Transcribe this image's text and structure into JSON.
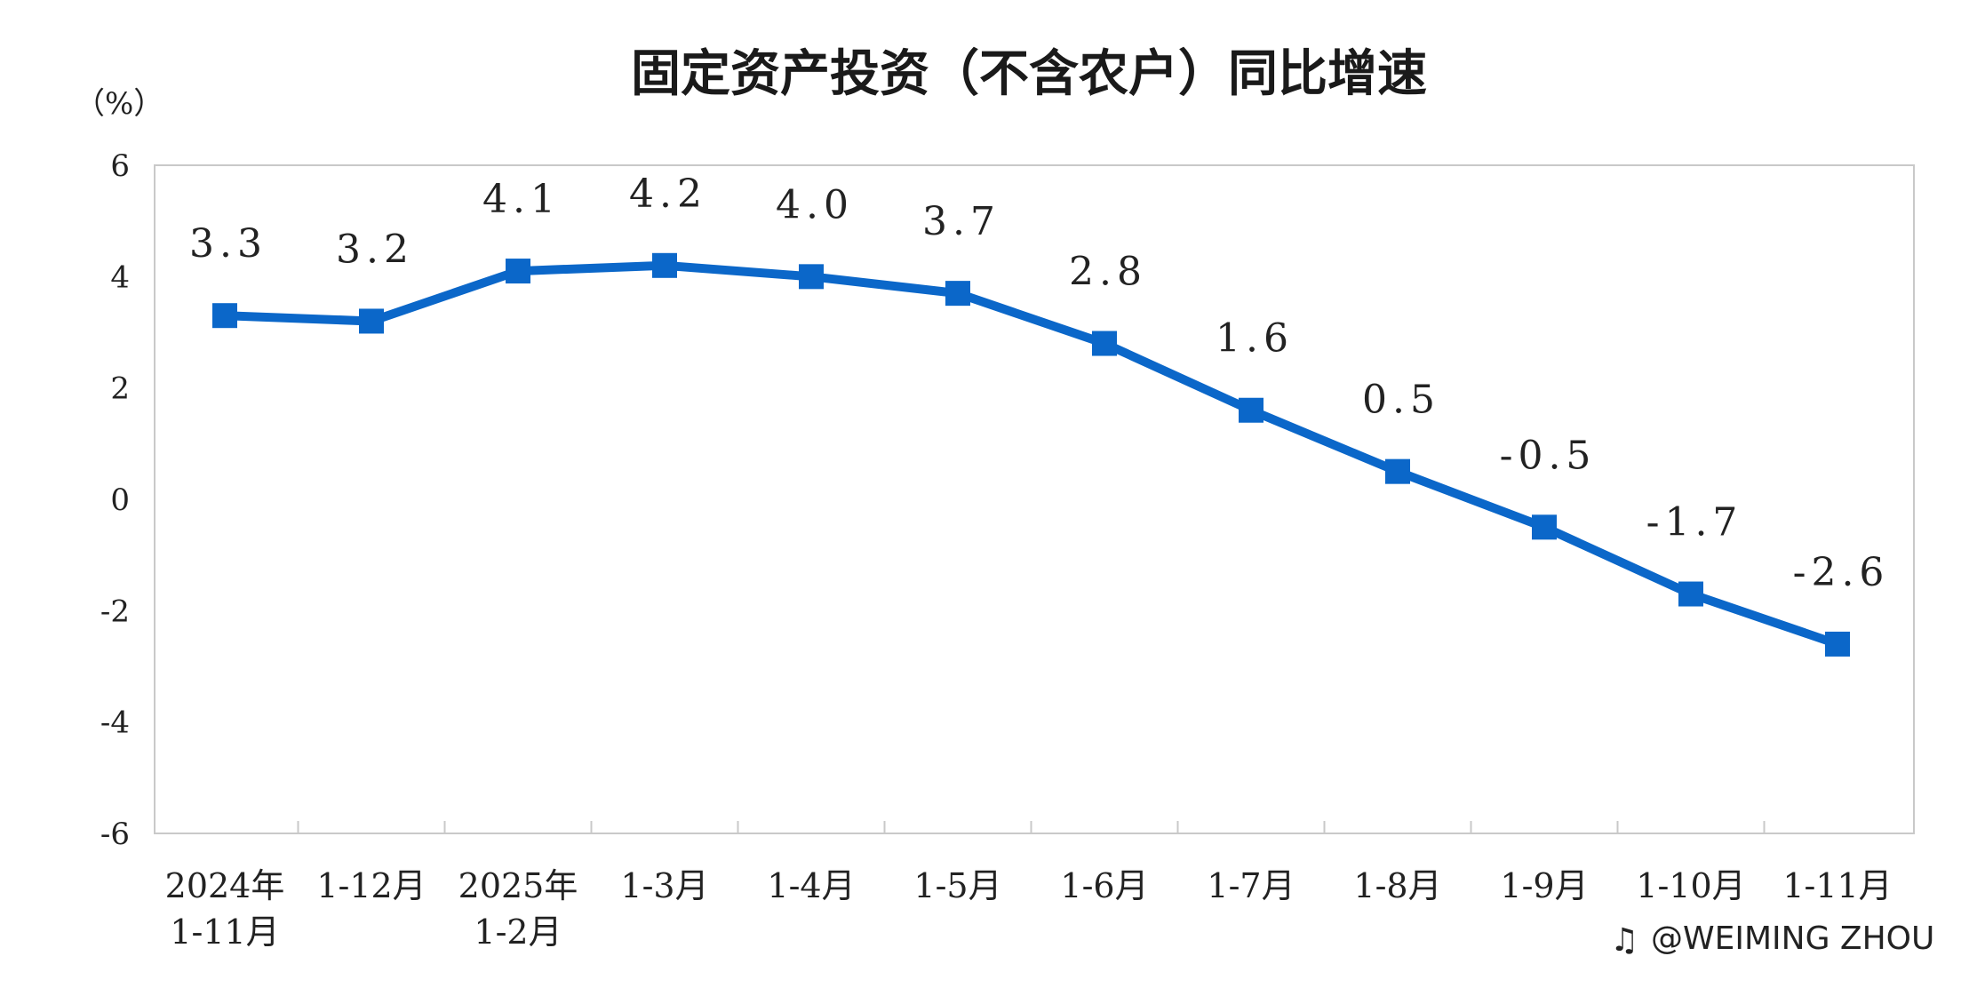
{
  "chart_data": {
    "type": "line",
    "title": "固定资产投资（不含农户）同比增速",
    "unit_label": "（%）",
    "ylim": [
      -6,
      6
    ],
    "yticks": [
      "6",
      "4",
      "2",
      "0",
      "-2",
      "-4",
      "-6"
    ],
    "ytick_values": [
      6,
      4,
      2,
      0,
      -2,
      -4,
      -6
    ],
    "categories": [
      [
        "2024年",
        "1-11月"
      ],
      [
        "1-12月"
      ],
      [
        "2025年",
        "1-2月"
      ],
      [
        "1-3月"
      ],
      [
        "1-4月"
      ],
      [
        "1-5月"
      ],
      [
        "1-6月"
      ],
      [
        "1-7月"
      ],
      [
        "1-8月"
      ],
      [
        "1-9月"
      ],
      [
        "1-10月"
      ],
      [
        "1-11月"
      ]
    ],
    "series": [
      {
        "values": [
          3.3,
          3.2,
          4.1,
          4.2,
          4.0,
          3.7,
          2.8,
          1.6,
          0.5,
          -0.5,
          -1.7,
          -2.6
        ],
        "labels": [
          "3.3",
          "3.2",
          "4.1",
          "4.2",
          "4.0",
          "3.7",
          "2.8",
          "1.6",
          "0.5",
          "-0.5",
          "-1.7",
          "-2.6"
        ],
        "color": "#0b67c9"
      }
    ],
    "grid": false,
    "legend": "none"
  },
  "watermark": "@WEIMING ZHOU"
}
